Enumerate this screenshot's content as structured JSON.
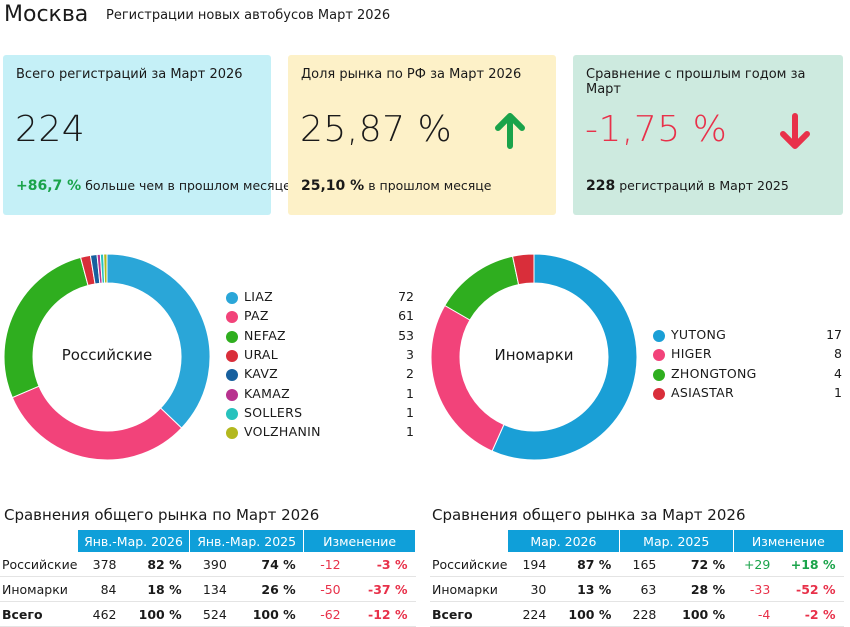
{
  "header": {
    "city": "Москва",
    "subtitle": "Регистрации новых автобусов Март 2026"
  },
  "colors": {
    "card1": "#c5f0f7",
    "card2": "#fdf1c8",
    "card3": "#cdeadf",
    "green": "#1aa34a",
    "red": "#e8314a",
    "tableHeader": "#0f9fd9"
  },
  "cards": [
    {
      "title": "Всего регистраций за Март 2026",
      "value": "224",
      "delta": "+86,7 %",
      "delta_text": "больше чем в прошлом месяце",
      "delta_color": "green"
    },
    {
      "title": "Доля рынка по РФ за Март 2026",
      "value": "25,87 %",
      "delta": "25,10 %",
      "delta_text": "в прошлом месяце",
      "arrow": "up"
    },
    {
      "title": "Сравнение с прошлым годом за Март",
      "value": "-1,75 %",
      "delta": "228",
      "delta_text": "регистраций в Март 2025",
      "arrow": "down"
    }
  ],
  "chart_data": [
    {
      "type": "pie",
      "title": "Российские",
      "categories": [
        "LIAZ",
        "PAZ",
        "NEFAZ",
        "URAL",
        "KAVZ",
        "KAMAZ",
        "SOLLERS",
        "VOLZHANIN"
      ],
      "values": [
        72,
        61,
        53,
        3,
        2,
        1,
        1,
        1
      ],
      "colors": [
        "#2aa6d8",
        "#f2437a",
        "#2fae1f",
        "#d92e3a",
        "#17609e",
        "#b8328f",
        "#27c2bd",
        "#b3b81e"
      ]
    },
    {
      "type": "pie",
      "title": "Иномарки",
      "categories": [
        "YUTONG",
        "HIGER",
        "ZHONGTONG",
        "ASIASTAR"
      ],
      "values": [
        17,
        8,
        4,
        1
      ],
      "colors": [
        "#1a9fd6",
        "#f2437a",
        "#2fae1f",
        "#d92e3a"
      ]
    }
  ],
  "table1": {
    "title": "Сравнения общего рынка по Март 2026",
    "headers": [
      "Янв.-Мар. 2026",
      "Янв.-Мар. 2025",
      "Изменение"
    ],
    "rows": [
      [
        "Российские",
        "378",
        "82 %",
        "390",
        "74 %",
        "-12",
        "-3 %"
      ],
      [
        "Иномарки",
        "84",
        "18 %",
        "134",
        "26 %",
        "-50",
        "-37 %"
      ],
      [
        "Всего",
        "462",
        "100 %",
        "524",
        "100 %",
        "-62",
        "-12 %"
      ]
    ]
  },
  "table2": {
    "title": "Сравнения общего рынка за Март 2026",
    "headers": [
      "Мар. 2026",
      "Мар. 2025",
      "Изменение"
    ],
    "rows": [
      [
        "Российские",
        "194",
        "87 %",
        "165",
        "72 %",
        "+29",
        "+18 %"
      ],
      [
        "Иномарки",
        "30",
        "13 %",
        "63",
        "28 %",
        "-33",
        "-52 %"
      ],
      [
        "Всего",
        "224",
        "100 %",
        "228",
        "100 %",
        "-4",
        "-2 %"
      ]
    ]
  }
}
